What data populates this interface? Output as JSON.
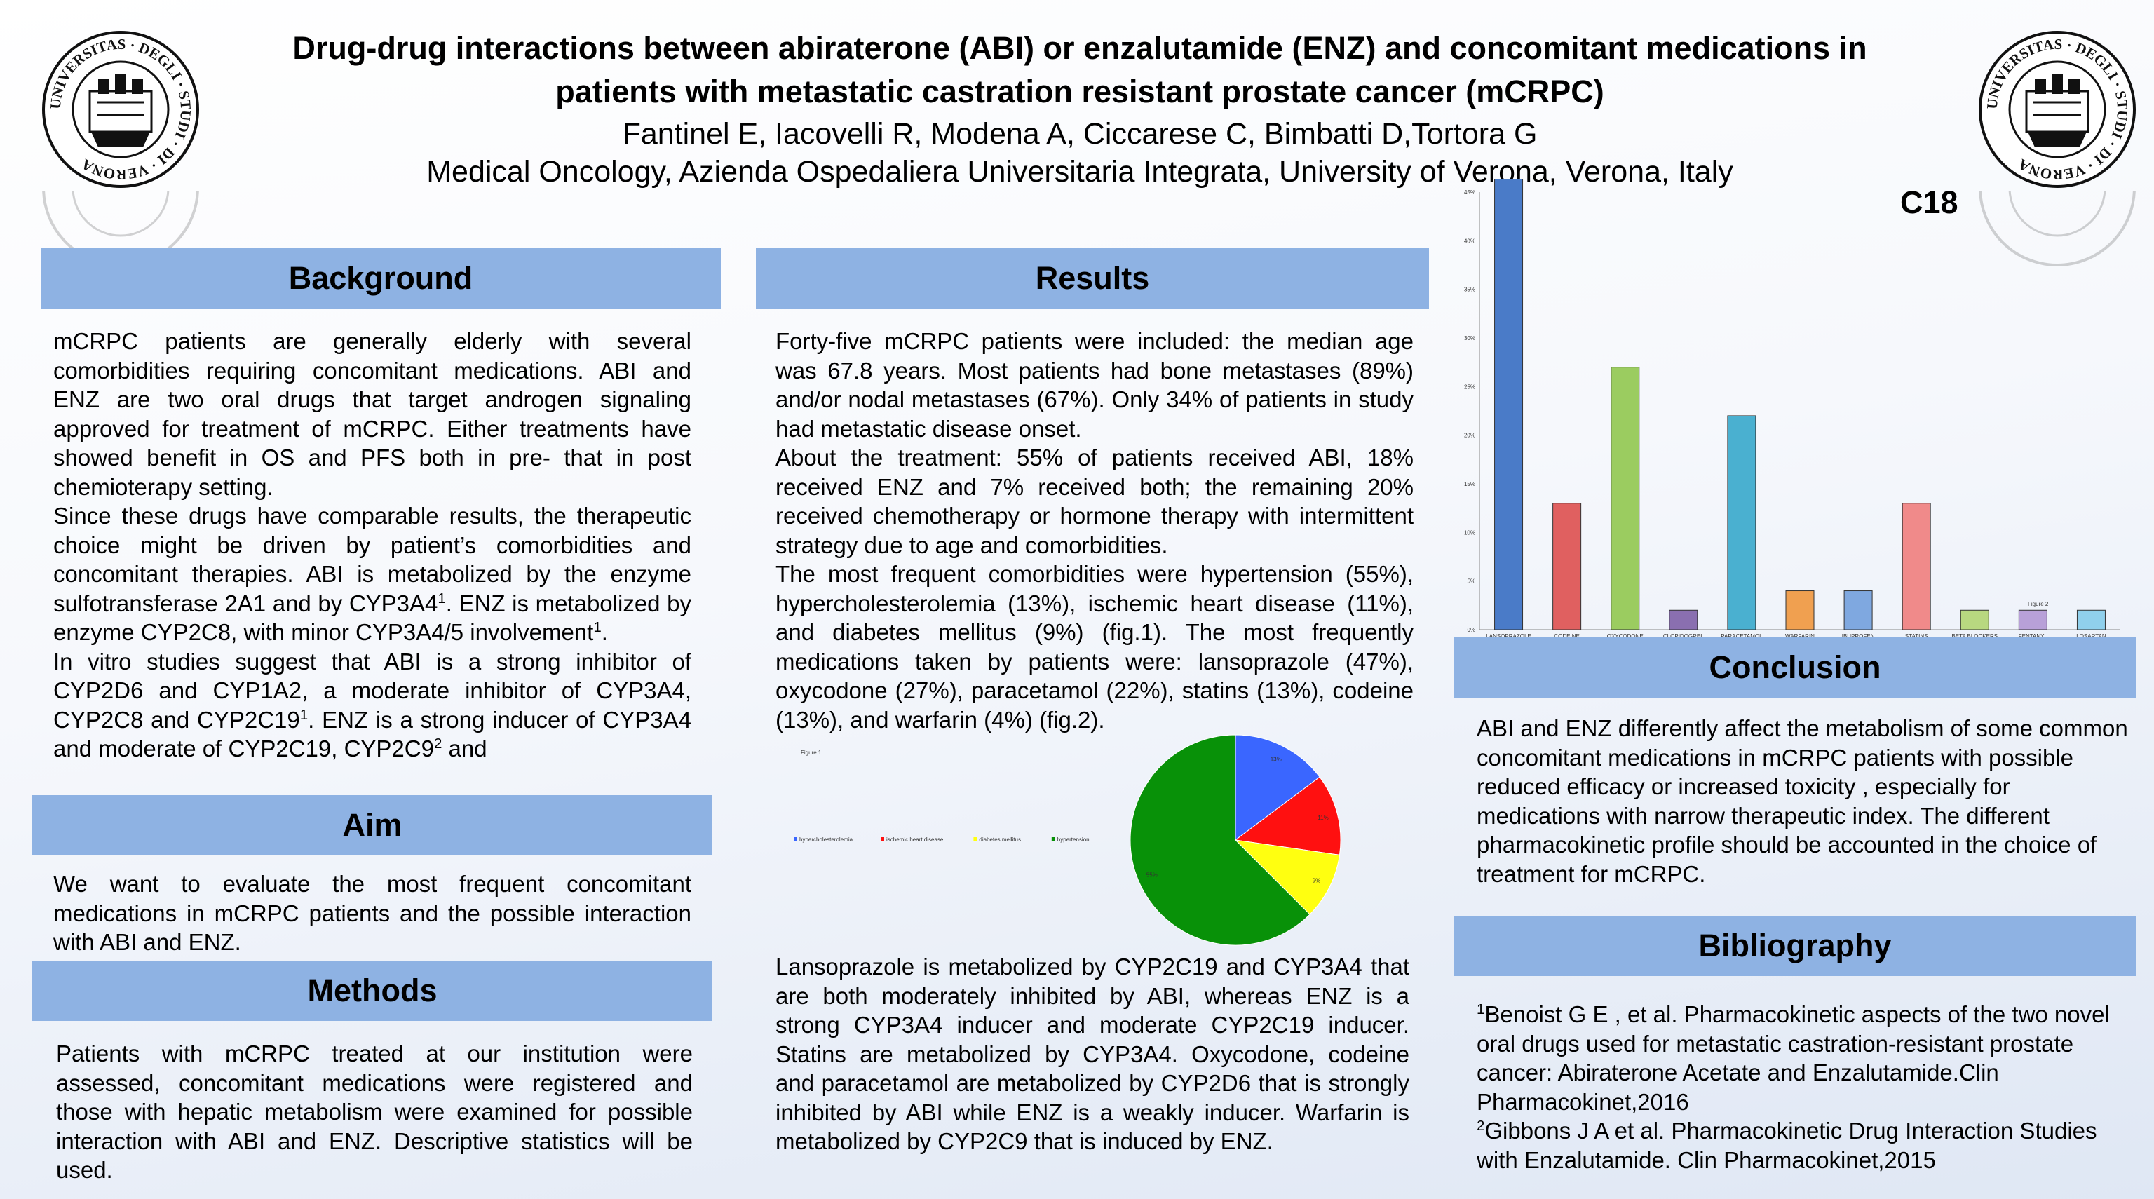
{
  "header": {
    "title_line1": "Drug-drug interactions between abiraterone (ABI) or enzalutamide (ENZ) and concomitant medications in",
    "title_line2": "patients with metastatic castration resistant prostate cancer (mCRPC)",
    "authors": "Fantinel E, Iacovelli R, Modena A, Ciccarese C, Bimbatti D,Tortora G",
    "affiliation": "Medical Oncology, Azienda Ospedaliera Universitaria Integrata, University of Verona, Verona, Italy",
    "seal_text": "UNIVERSITAS · DEGLI · STUDI · DI · VERONA"
  },
  "background": {
    "heading": "Background",
    "p1": "mCRPC patients are generally elderly with several comorbidities requiring concomitant medications. ABI and ENZ are two oral drugs that target androgen signaling approved for treatment of mCRPC. Either treatments have showed benefit in OS and PFS both in pre- that in post chemioterapy setting.",
    "p2a": "Since these drugs have comparable results, the therapeutic choice might be driven by patient’s comorbidities and concomitant therapies. ABI is metabolized by the enzyme sulfotransferase 2A1 and by CYP3A4",
    "p2b": ". ENZ is metabolized by enzyme CYP2C8, with minor CYP3A4/5 involvement",
    "p2c": ".",
    "p3a": "In vitro studies suggest that ABI is a strong inhibitor of CYP2D6 and CYP1A2, a moderate inhibitor of CYP3A4, CYP2C8 and CYP2C19",
    "p3b": ". ENZ is a strong inducer of CYP3A4 and moderate of CYP2C19, CYP2C9",
    "p3c": " and",
    "sup1": "1",
    "sup2": "2"
  },
  "aim": {
    "heading": "Aim",
    "text": "We want to evaluate the most frequent concomitant medications in mCRPC patients and the possible interaction with ABI and ENZ."
  },
  "methods": {
    "heading": "Methods",
    "text": "Patients with mCRPC treated at our institution were assessed, concomitant medications were registered and those with hepatic metabolism were examined for possible interaction with ABI and ENZ. Descriptive statistics will be used."
  },
  "results": {
    "heading": "Results",
    "p1": "Forty-five mCRPC patients were included: the median age was 67.8 years. Most patients had bone metastases (89%) and/or nodal metastases (67%). Only 34% of patients in study had metastatic disease onset.",
    "p2": "About the treatment: 55% of patients received ABI, 18% received ENZ and 7% received both; the remaining 20% received chemotherapy or hormone therapy with intermittent strategy due to age and comorbidities.",
    "p3": "The most frequent comorbidities were hypertension (55%), hypercholesterolemia (13%), ischemic heart disease (11%), and diabetes mellitus (9%) (fig.1). The most frequently medications taken by patients were: lansoprazole (47%), oxycodone (27%), paracetamol (22%), statins (13%), codeine (13%), and warfarin (4%) (fig.2).",
    "p4": "Lansoprazole is metabolized by CYP2C19 and CYP3A4 that are both moderately inhibited by ABI, whereas ENZ is a strong CYP3A4 inducer and moderate CYP2C19 inducer. Statins are metabolized by CYP3A4. Oxycodone, codeine and paracetamol are metabolized by CYP2D6 that is strongly inhibited by ABI while ENZ is a weakly inducer. Warfarin is metabolized by CYP2C9 that is induced by ENZ.",
    "fig1_label": "Figure 1"
  },
  "conclusion": {
    "heading": "Conclusion",
    "text": "ABI and ENZ differently affect the metabolism of some common concomitant medications in mCRPC patients with possible reduced efficacy or increased toxicity , especially for medications with narrow therapeutic index. The different pharmacokinetic profile should be accounted in the choice of treatment for mCRPC."
  },
  "bibliography": {
    "heading": "Bibliography",
    "ref1_num": "1",
    "ref1": "Benoist  G E , et  al. Pharmacokinetic aspects of the two novel oral drugs used for metastatic castration-resistant prostate cancer: Abiraterone Acetate and Enzalutamide.Clin Pharmacokinet,2016",
    "ref2_num": "2",
    "ref2": "Gibbons J A et al. Pharmacokinetic Drug Interaction Studies with  Enzalutamide. Clin Pharmacokinet,2015"
  },
  "colors": {
    "header_band": "#8eb2e3"
  },
  "chart_data": [
    {
      "type": "bar",
      "title": "C18",
      "annotation": "Figure 2",
      "categories": [
        "LANSOPRAZOLE",
        "CODEINE",
        "OXYCODONE",
        "CLOPIDOGREL",
        "PARACETAMOL",
        "WARFARIN",
        "IBUPROFEN",
        "STATINS",
        "BETA BLOCKERS",
        "FENTANYL",
        "LOSARTAN"
      ],
      "values": [
        47,
        13,
        27,
        2,
        22,
        4,
        4,
        13,
        2,
        2,
        2
      ],
      "yticks": [
        "0%",
        "5%",
        "10%",
        "15%",
        "20%",
        "25%",
        "30%",
        "35%",
        "40%",
        "45%"
      ],
      "ylim": [
        0,
        45
      ],
      "colors": [
        "#4a7bc8",
        "#e06060",
        "#9bcc60",
        "#8a6fb0",
        "#4ab0d0",
        "#f0a050",
        "#7fa8e0",
        "#f08a8a",
        "#b8d880",
        "#b8a0d8",
        "#90d0ec"
      ]
    },
    {
      "type": "pie",
      "title": "",
      "slices": [
        {
          "label": "hypercholesterolemia",
          "value": 13,
          "text": "13%",
          "color": "#3a66ff"
        },
        {
          "label": "ischemic heart disease",
          "value": 11,
          "text": "11%",
          "color": "#ff1010"
        },
        {
          "label": "diabetes mellitus",
          "value": 9,
          "text": "9%",
          "color": "#ffff10"
        },
        {
          "label": "hypertension",
          "value": 55,
          "text": "55%",
          "color": "#089108"
        }
      ]
    }
  ]
}
